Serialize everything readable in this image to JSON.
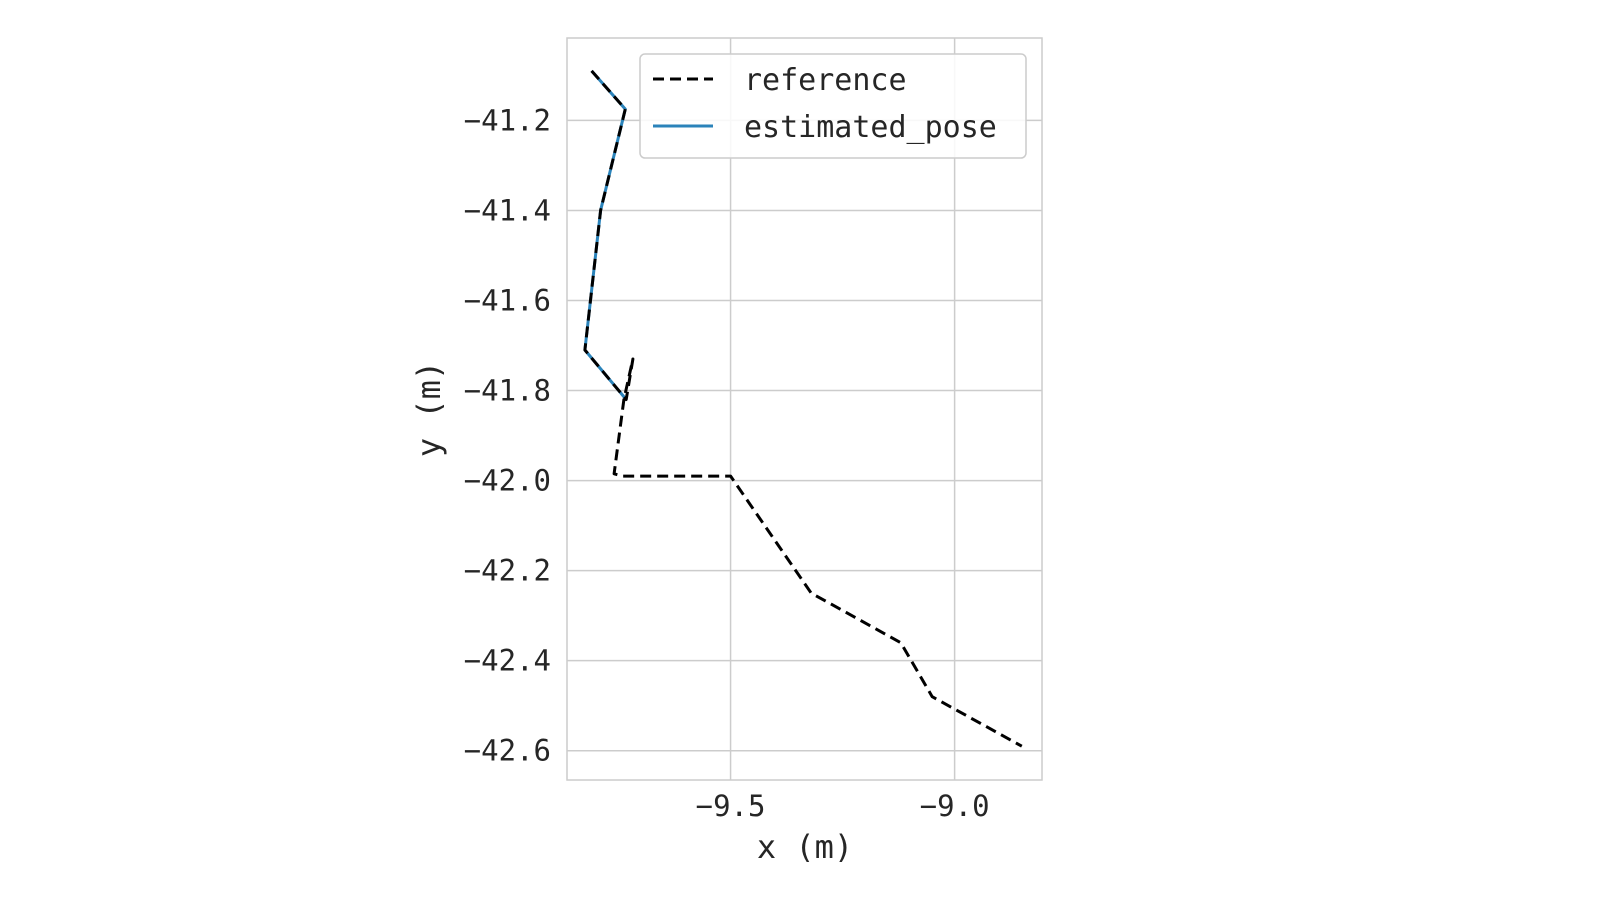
{
  "chart_data": {
    "type": "line",
    "xlabel": "x (m)",
    "ylabel": "y (m)",
    "xlim": [
      -9.865,
      -8.805
    ],
    "ylim": [
      -42.665,
      -41.017
    ],
    "xticks": [
      -9.5,
      -9.0
    ],
    "xtick_labels": [
      "−9.5",
      "−9.0"
    ],
    "yticks": [
      -41.2,
      -41.4,
      -41.6,
      -41.8,
      -42.0,
      -42.2,
      -42.4,
      -42.6
    ],
    "ytick_labels": [
      "−41.2",
      "−41.4",
      "−41.6",
      "−41.8",
      "−42.0",
      "−42.2",
      "−42.4",
      "−42.6"
    ],
    "grid": true,
    "legend_position": "top-right",
    "series": [
      {
        "name": "reference",
        "color": "#000000",
        "style": "dashed",
        "x": [
          -9.81,
          -9.735,
          -9.79,
          -9.825,
          -9.733,
          -9.718,
          -9.738,
          -9.76,
          -9.74,
          -9.5,
          -9.32,
          -9.12,
          -9.05,
          -8.85
        ],
        "y": [
          -41.09,
          -41.175,
          -41.4,
          -41.71,
          -41.82,
          -41.73,
          -41.82,
          -41.985,
          -41.99,
          -41.99,
          -42.25,
          -42.36,
          -42.48,
          -42.59
        ]
      },
      {
        "name": "estimated_pose",
        "color": "#2b83ba",
        "style": "solid",
        "x": [
          -9.81,
          -9.735,
          -9.79,
          -9.825,
          -9.733
        ],
        "y": [
          -41.09,
          -41.175,
          -41.4,
          -41.71,
          -41.82
        ]
      }
    ]
  }
}
